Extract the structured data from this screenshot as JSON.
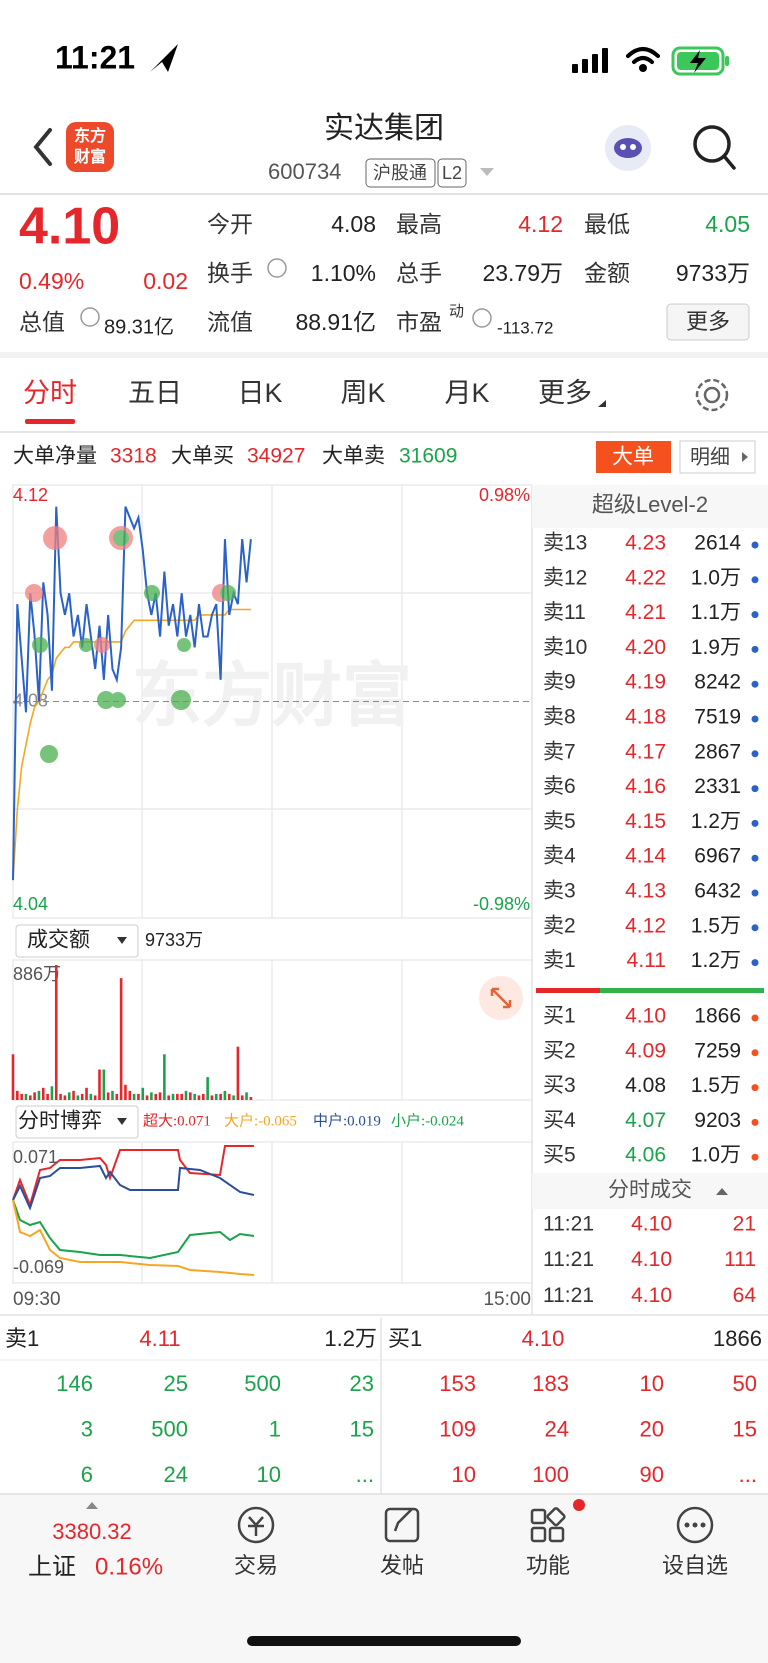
{
  "status": {
    "time": "11:21"
  },
  "header": {
    "logo": [
      "东方",
      "财富"
    ],
    "title": "实达集团",
    "code": "600734",
    "tags": [
      "沪股通",
      "L2"
    ]
  },
  "quote": {
    "price": "4.10",
    "change_pct": "0.49%",
    "change": "0.02",
    "open_label": "今开",
    "open": "4.08",
    "high_label": "最高",
    "high": "4.12",
    "low_label": "最低",
    "low": "4.05",
    "turnover_label": "换手",
    "turnover": "1.10%",
    "volume_label": "总手",
    "volume": "23.79万",
    "amount_label": "金额",
    "amount": "9733万",
    "mcap_label": "总值",
    "mcap": "89.31亿",
    "float_label": "流值",
    "float": "88.91亿",
    "pe_label": "市盈",
    "pe_tag": "动",
    "pe": "-113.72",
    "more": "更多"
  },
  "tabs": [
    "分时",
    "五日",
    "日K",
    "周K",
    "月K",
    "更多"
  ],
  "big_orders": {
    "net_label": "大单净量",
    "net": "3318",
    "buy_label": "大单买",
    "buy": "34927",
    "sell_label": "大单卖",
    "sell": "31609",
    "button": "大单",
    "detail": "明细"
  },
  "chart_data": [
    {
      "type": "line",
      "ylim": [
        4.04,
        4.12
      ],
      "yticks": [
        4.04,
        4.08,
        4.12
      ],
      "y2lim": [
        -0.98,
        0.98
      ],
      "y2ticks": [
        {
          "value": -0.98,
          "label": "-0.98%"
        },
        {
          "value": 0.98,
          "label": "0.98%"
        }
      ],
      "series": [
        {
          "color": "#2a62c9",
          "values": [
            4.047,
            4.098,
            4.088,
            4.078,
            4.1,
            4.092,
            4.08,
            4.102,
            4.096,
            4.082,
            4.116,
            4.1,
            4.096,
            4.1,
            4.092,
            4.096,
            4.09,
            4.098,
            4.092,
            4.086,
            4.094,
            4.084,
            4.096,
            4.086,
            4.084,
            4.09,
            4.116,
            4.114,
            4.112,
            4.114,
            4.108,
            4.1,
            4.096,
            4.1,
            4.092,
            4.104,
            4.094,
            4.098,
            4.092,
            4.1,
            4.092,
            4.096,
            4.09,
            4.098,
            4.092,
            4.092,
            4.096,
            4.098,
            4.084,
            4.11,
            4.096,
            4.1,
            4.098,
            4.11,
            4.102,
            4.11
          ]
        },
        {
          "color": "#f5a623",
          "values": [
            4.047,
            4.06,
            4.068,
            4.072,
            4.076,
            4.079,
            4.08,
            4.082,
            4.084,
            4.085,
            4.088,
            4.089,
            4.09,
            4.09,
            4.091,
            4.091,
            4.091,
            4.091,
            4.091,
            4.091,
            4.091,
            4.091,
            4.091,
            4.091,
            4.091,
            4.091,
            4.093,
            4.094,
            4.095,
            4.095,
            4.095,
            4.095,
            4.095,
            4.095,
            4.095,
            4.095,
            4.095,
            4.095,
            4.095,
            4.095,
            4.095,
            4.095,
            4.095,
            4.096,
            4.096,
            4.096,
            4.096,
            4.096,
            4.096,
            4.096,
            4.097,
            4.097,
            4.097,
            4.097,
            4.097,
            4.097
          ]
        }
      ]
    },
    {
      "type": "bar",
      "ylim": [
        0,
        886
      ],
      "yticks": [
        {
          "value": 886,
          "label": "886万"
        }
      ],
      "series": [
        {
          "color": "#e5262b",
          "values": [
            300,
            60,
            40,
            null,
            30,
            50,
            null,
            80,
            40,
            null,
            886,
            40,
            30,
            null,
            60,
            null,
            40,
            80,
            null,
            30,
            200,
            null,
            50,
            null,
            40,
            800,
            100,
            60,
            null,
            40,
            null,
            30,
            null,
            40,
            50,
            null,
            30,
            null,
            40,
            40,
            null,
            50,
            null,
            30,
            40,
            null,
            30,
            null,
            40,
            null,
            40,
            null,
            350,
            30,
            null,
            20
          ]
        },
        {
          "color": "#1aa34a",
          "values": [
            null,
            null,
            null,
            40,
            null,
            null,
            60,
            null,
            null,
            90,
            null,
            null,
            null,
            50,
            null,
            30,
            null,
            null,
            40,
            null,
            null,
            200,
            null,
            60,
            null,
            null,
            null,
            null,
            40,
            null,
            80,
            null,
            50,
            null,
            null,
            300,
            null,
            40,
            null,
            null,
            60,
            null,
            40,
            null,
            null,
            150,
            null,
            40,
            null,
            60,
            null,
            30,
            null,
            null,
            50,
            null
          ]
        }
      ]
    }
  ],
  "chart_panel": {
    "watermark": "东方财富",
    "time_start": "09:30",
    "time_end": "15:00",
    "volume_selector": "成交额",
    "volume_total": "9733万",
    "game_selector": "分时博弈",
    "game_legend": [
      "超大:0.071",
      "大户:-0.065",
      "中户:0.019",
      "小户:-0.024"
    ],
    "game_max": "0.071",
    "game_min": "-0.069"
  },
  "order_book": {
    "title": "超级Level-2",
    "asks": [
      {
        "label": "卖13",
        "price": "4.23",
        "volume": "2614"
      },
      {
        "label": "卖12",
        "price": "4.22",
        "volume": "1.0万"
      },
      {
        "label": "卖11",
        "price": "4.21",
        "volume": "1.1万"
      },
      {
        "label": "卖10",
        "price": "4.20",
        "volume": "1.9万"
      },
      {
        "label": "卖9",
        "price": "4.19",
        "volume": "8242"
      },
      {
        "label": "卖8",
        "price": "4.18",
        "volume": "7519"
      },
      {
        "label": "卖7",
        "price": "4.17",
        "volume": "2867"
      },
      {
        "label": "卖6",
        "price": "4.16",
        "volume": "2331"
      },
      {
        "label": "卖5",
        "price": "4.15",
        "volume": "1.2万"
      },
      {
        "label": "卖4",
        "price": "4.14",
        "volume": "6967"
      },
      {
        "label": "卖3",
        "price": "4.13",
        "volume": "6432"
      },
      {
        "label": "卖2",
        "price": "4.12",
        "volume": "1.5万"
      },
      {
        "label": "卖1",
        "price": "4.11",
        "volume": "1.2万"
      }
    ],
    "bids": [
      {
        "label": "买1",
        "price": "4.10",
        "volume": "1866"
      },
      {
        "label": "买2",
        "price": "4.09",
        "volume": "7259"
      },
      {
        "label": "买3",
        "price": "4.08",
        "volume": "1.5万"
      },
      {
        "label": "买4",
        "price": "4.07",
        "volume": "9203"
      },
      {
        "label": "买5",
        "price": "4.06",
        "volume": "1.0万"
      }
    ],
    "trades_title": "分时成交",
    "trades": [
      {
        "time": "11:21",
        "price": "4.10",
        "volume": "21"
      },
      {
        "time": "11:21",
        "price": "4.10",
        "volume": "111"
      },
      {
        "time": "11:21",
        "price": "4.10",
        "volume": "64"
      }
    ]
  },
  "queue": {
    "ask_label": "卖1",
    "ask_price": "4.11",
    "ask_volume": "1.2万",
    "bid_label": "买1",
    "bid_price": "4.10",
    "bid_volume": "1866",
    "ask_rows": [
      [
        "146",
        "25",
        "500",
        "23"
      ],
      [
        "3",
        "500",
        "1",
        "15"
      ],
      [
        "6",
        "24",
        "10",
        "..."
      ]
    ],
    "bid_rows": [
      [
        "153",
        "183",
        "10",
        "50"
      ],
      [
        "109",
        "24",
        "20",
        "15"
      ],
      [
        "10",
        "100",
        "90",
        "..."
      ]
    ]
  },
  "footer": {
    "index_value": "3380.32",
    "index_name": "上证",
    "index_pct": "0.16%",
    "nav": [
      "交易",
      "发帖",
      "功能",
      "设自选"
    ]
  }
}
